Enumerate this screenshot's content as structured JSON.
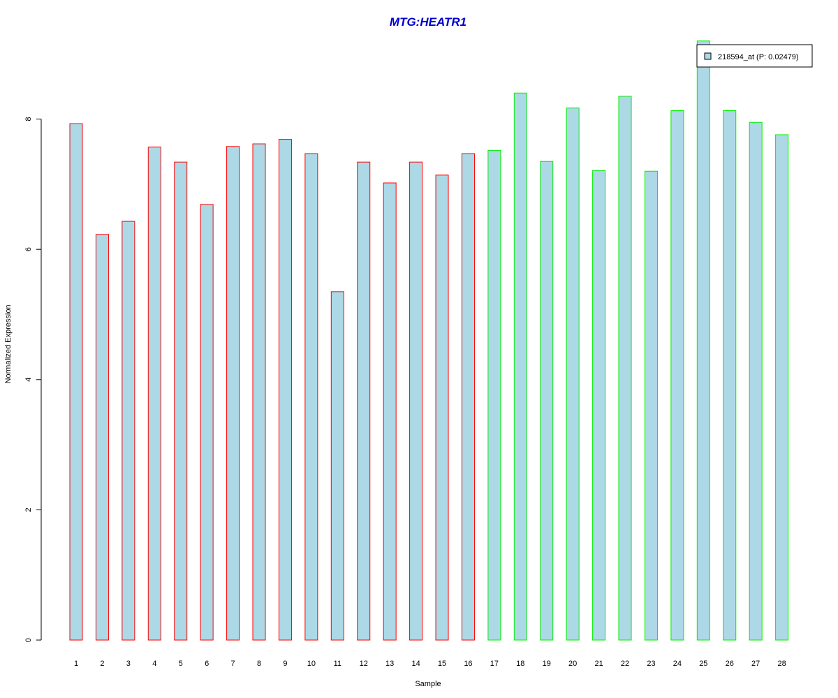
{
  "chart_data": {
    "type": "bar",
    "title": "MTG:HEATR1",
    "xlabel": "Sample",
    "ylabel": "Normalized Expression",
    "categories": [
      "1",
      "2",
      "3",
      "4",
      "5",
      "6",
      "7",
      "8",
      "9",
      "10",
      "11",
      "12",
      "13",
      "14",
      "15",
      "16",
      "17",
      "18",
      "19",
      "20",
      "21",
      "22",
      "23",
      "24",
      "25",
      "26",
      "27",
      "28"
    ],
    "series": [
      {
        "name": "218594_at (P: 0.02479)",
        "values": [
          7.93,
          6.23,
          6.43,
          7.57,
          7.34,
          6.69,
          7.58,
          7.62,
          7.69,
          7.47,
          5.35,
          7.34,
          7.02,
          7.34,
          7.14,
          7.47,
          7.52,
          8.4,
          7.35,
          8.17,
          7.21,
          8.35,
          7.2,
          8.13,
          9.2,
          8.13,
          7.95,
          7.76
        ]
      }
    ],
    "groups": [
      {
        "samples": [
          1,
          16
        ],
        "border_color": "#ff0000"
      },
      {
        "samples": [
          17,
          28
        ],
        "border_color": "#00ee00"
      }
    ],
    "yticks": [
      "0",
      "2",
      "4",
      "6",
      "8"
    ],
    "ylim": [
      0,
      9.2
    ],
    "grid": false,
    "legend_position": "top-right",
    "colors": {
      "bar_fill": "#add8e6",
      "title": "#0000cd"
    }
  }
}
